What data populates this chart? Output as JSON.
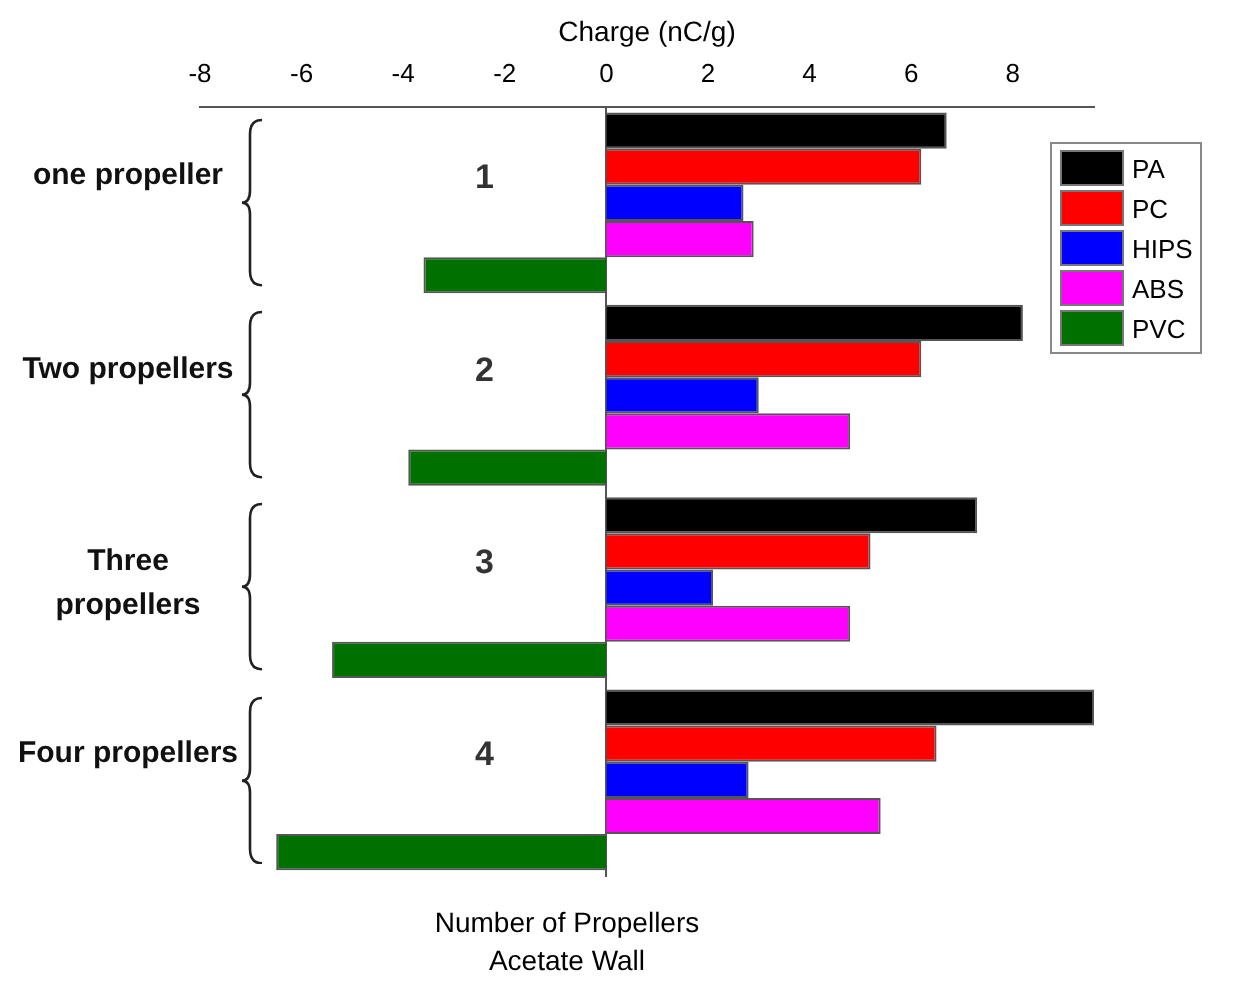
{
  "chart_data": {
    "type": "bar",
    "orientation": "horizontal",
    "xlabel": "Charge (nC/g)",
    "categories": [
      "1",
      "2",
      "3",
      "4"
    ],
    "series": [
      {
        "name": "PA",
        "color": "#000000",
        "values": [
          6.7,
          8.2,
          7.3,
          9.6
        ]
      },
      {
        "name": "PC",
        "color": "#ff0000",
        "values": [
          6.2,
          6.2,
          5.2,
          6.5
        ]
      },
      {
        "name": "HIPS",
        "color": "#0000ff",
        "values": [
          2.7,
          3.0,
          2.1,
          2.8
        ]
      },
      {
        "name": "ABS",
        "color": "#ff00ff",
        "values": [
          2.9,
          4.8,
          4.8,
          5.4
        ]
      },
      {
        "name": "PVC",
        "color": "#007000",
        "values": [
          -3.6,
          -3.9,
          -5.4,
          -6.5
        ]
      }
    ],
    "xlim": [
      -8,
      9.6
    ],
    "xticks": [
      -8,
      -6,
      -4,
      -2,
      0,
      2,
      4,
      6,
      8
    ],
    "legend": "top right",
    "annotations": [
      "one propeller",
      "Two propellers",
      "Three propellers",
      "Four propellers",
      "Number of Propellers",
      "Acetate Wall"
    ]
  }
}
